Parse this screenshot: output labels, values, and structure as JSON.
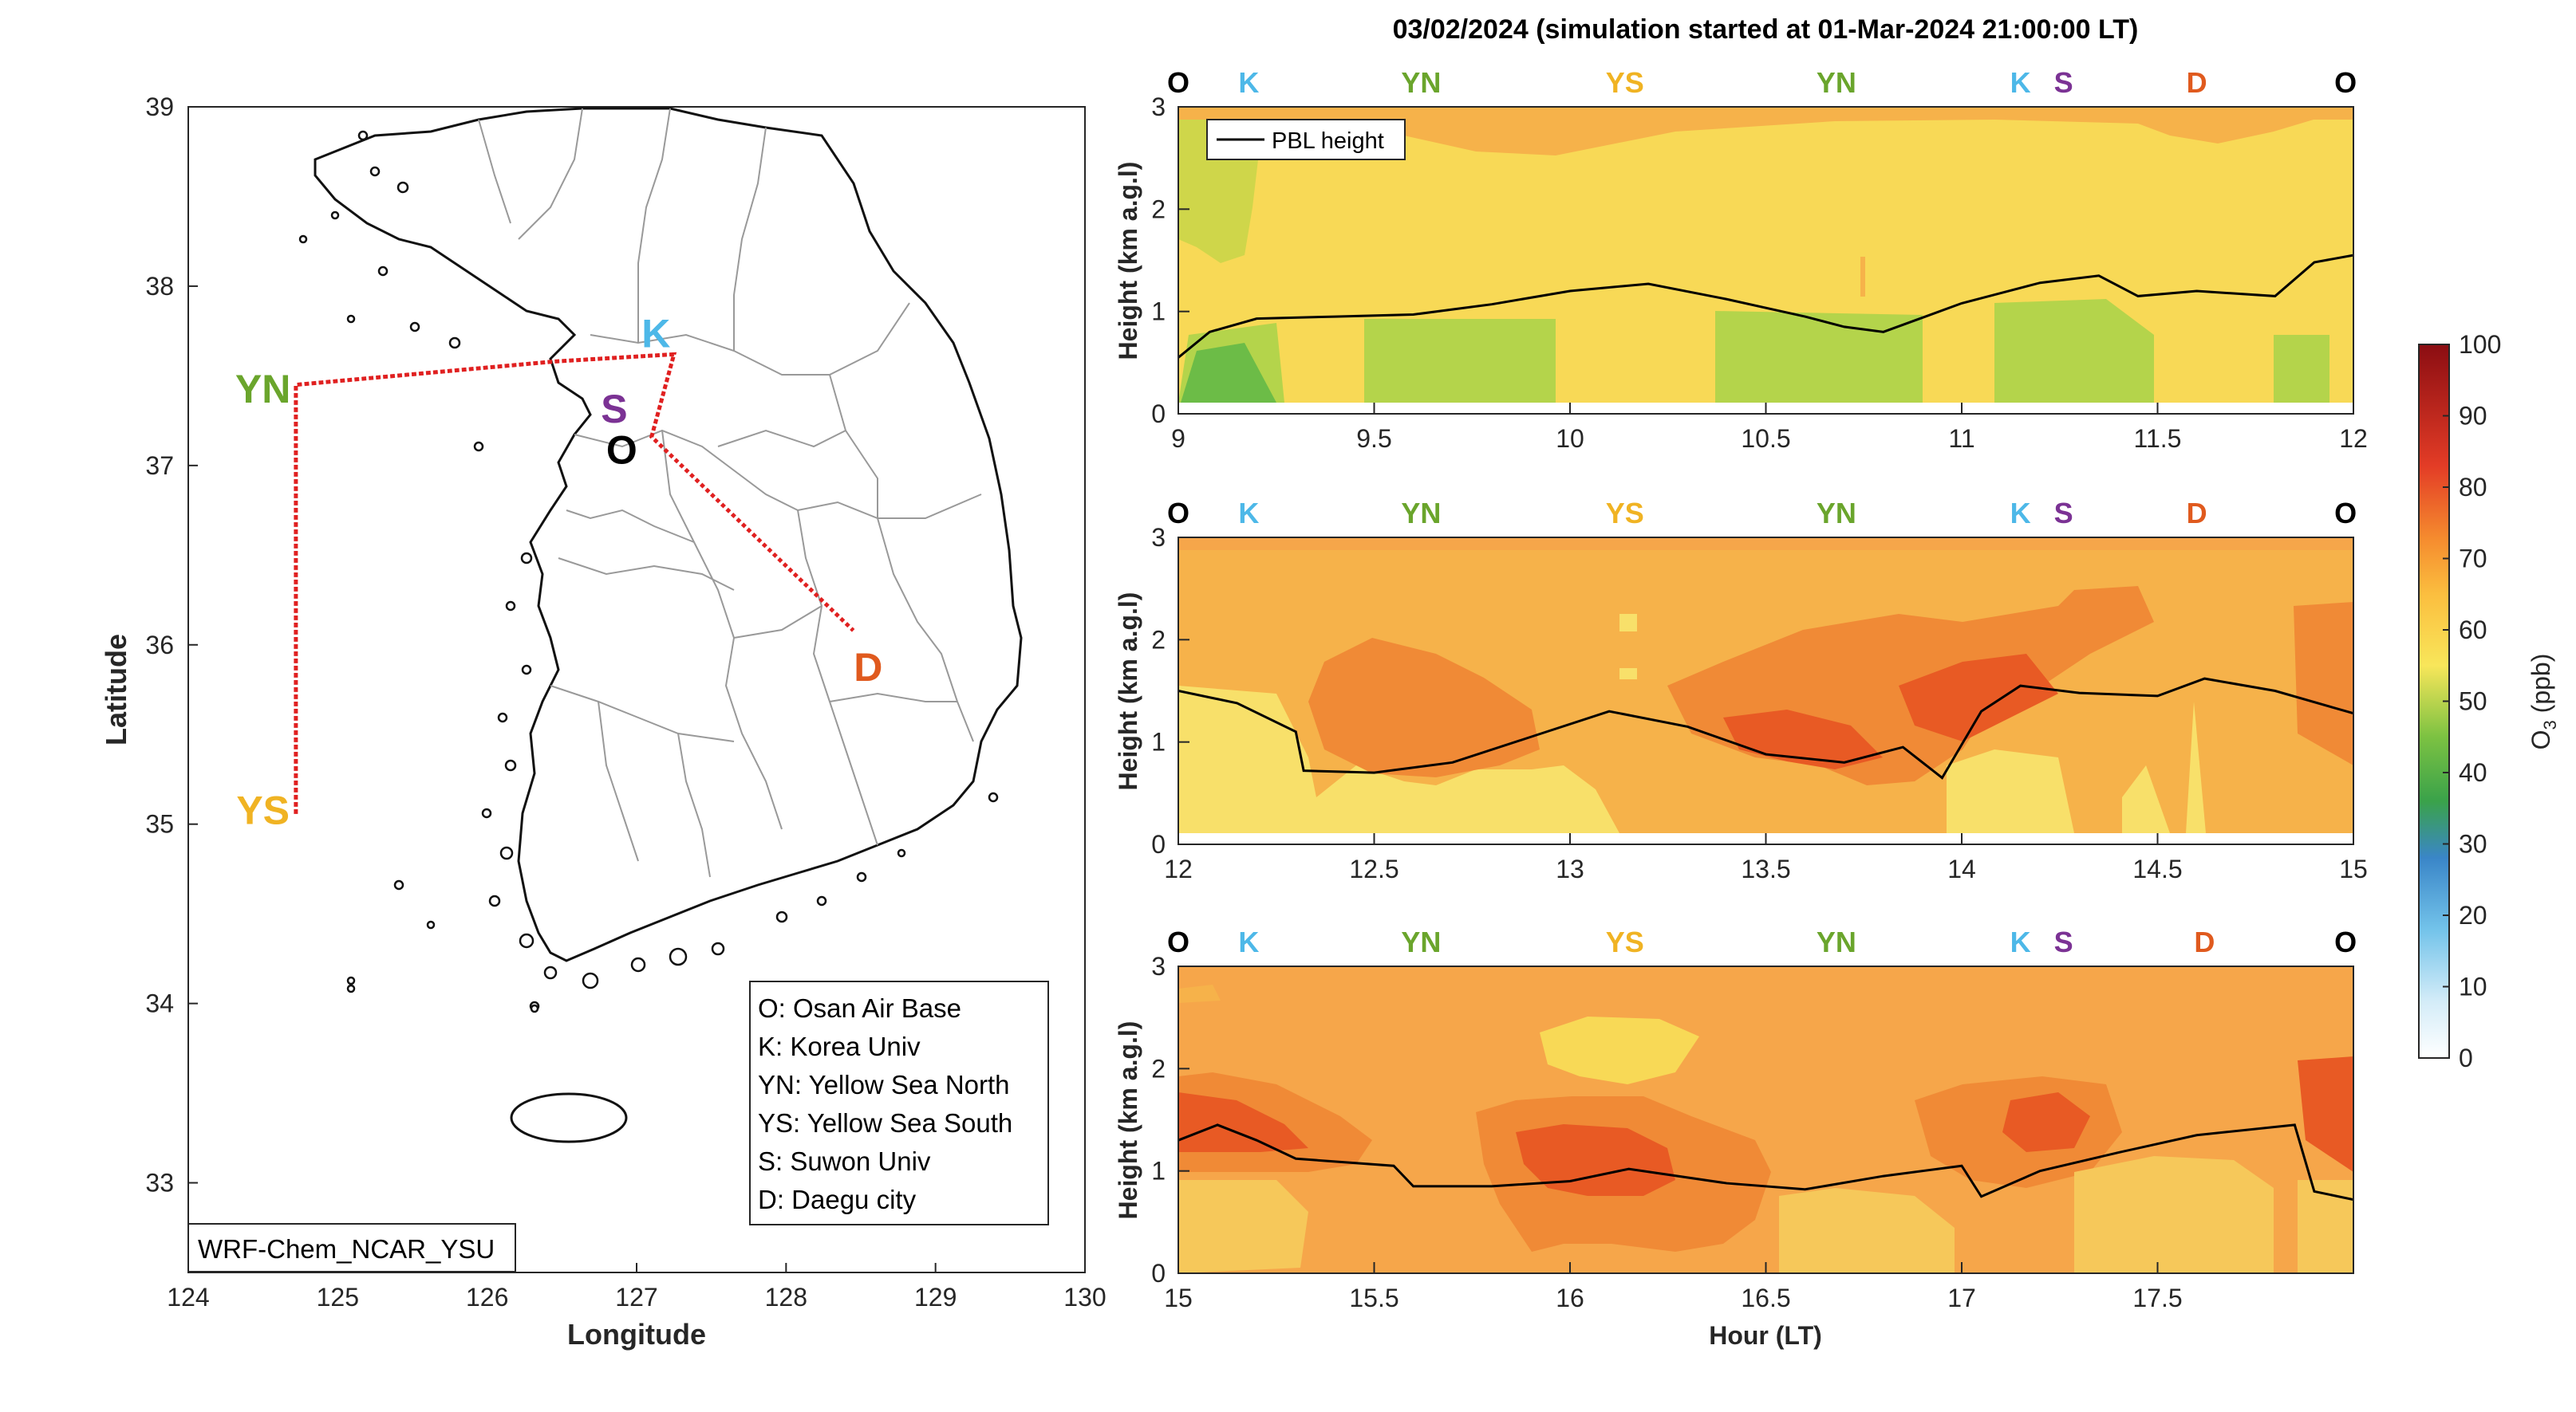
{
  "figure_title": "03/02/2024 (simulation started at 01-Mar-2024 21:00:00 LT)",
  "colors": {
    "site_O": "#000000",
    "site_K": "#4db8e8",
    "site_YN": "#6aa52c",
    "site_YS": "#f0b323",
    "site_S": "#7b3294",
    "site_D": "#e05a1e",
    "route": "#e02020",
    "pbl_line": "#000000"
  },
  "chart_data": [
    {
      "type": "map",
      "xlabel": "Longitude",
      "ylabel": "Latitude",
      "xlim": [
        124,
        130
      ],
      "ylim": [
        32.5,
        39
      ],
      "xticks": [
        "124",
        "125",
        "126",
        "127",
        "128",
        "129",
        "130"
      ],
      "yticks": [
        "33",
        "34",
        "35",
        "36",
        "37",
        "38",
        "39"
      ],
      "sites": [
        {
          "label": "O",
          "lon": 126.9,
          "lat": 37.09,
          "color": "#000000"
        },
        {
          "label": "K",
          "lon": 127.13,
          "lat": 37.74,
          "color": "#4db8e8"
        },
        {
          "label": "YN",
          "lon": 124.5,
          "lat": 37.43,
          "color": "#6aa52c"
        },
        {
          "label": "YS",
          "lon": 124.5,
          "lat": 35.08,
          "color": "#f0b323"
        },
        {
          "label": "S",
          "lon": 126.85,
          "lat": 37.32,
          "color": "#7b3294"
        },
        {
          "label": "D",
          "lon": 128.55,
          "lat": 35.88,
          "color": "#e05a1e"
        }
      ],
      "route": [
        [
          127.1,
          37.16
        ],
        [
          127.25,
          37.62
        ],
        [
          126.45,
          37.58
        ],
        [
          124.72,
          37.45
        ],
        [
          124.72,
          35.05
        ],
        [
          124.72,
          37.45
        ],
        [
          126.45,
          37.58
        ],
        [
          127.25,
          37.62
        ],
        [
          127.1,
          37.16
        ],
        [
          128.45,
          36.08
        ]
      ],
      "legend": [
        "O: Osan Air Base",
        "K: Korea Univ",
        "YN: Yellow Sea North",
        "YS: Yellow Sea South",
        "S: Suwon Univ",
        "D: Daegu city"
      ],
      "model_label": "WRF-Chem_NCAR_YSU"
    },
    {
      "type": "heatmap",
      "xlabel": "",
      "ylabel": "Height (km a.g.l)",
      "xlim": [
        9,
        12
      ],
      "ylim": [
        0,
        3
      ],
      "xticks": [
        "9",
        "9.5",
        "10",
        "10.5",
        "11",
        "11.5",
        "12"
      ],
      "yticks": [
        "0",
        "1",
        "2",
        "3"
      ],
      "site_markers": [
        {
          "label": "O",
          "x": 9.0
        },
        {
          "label": "K",
          "x": 9.18
        },
        {
          "label": "YN",
          "x": 9.62
        },
        {
          "label": "YS",
          "x": 10.14
        },
        {
          "label": "YN",
          "x": 10.68
        },
        {
          "label": "K",
          "x": 11.15
        },
        {
          "label": "S",
          "x": 11.26
        },
        {
          "label": "D",
          "x": 11.6
        },
        {
          "label": "O",
          "x": 11.98
        }
      ],
      "series": [
        {
          "name": "PBL height",
          "x": [
            9.0,
            9.08,
            9.2,
            9.4,
            9.6,
            9.8,
            10.0,
            10.2,
            10.4,
            10.6,
            10.7,
            10.8,
            11.0,
            11.1,
            11.2,
            11.35,
            11.45,
            11.6,
            11.8,
            11.9,
            12.0
          ],
          "y": [
            0.55,
            0.8,
            0.93,
            0.95,
            0.97,
            1.07,
            1.2,
            1.27,
            1.12,
            0.95,
            0.85,
            0.8,
            1.08,
            1.18,
            1.28,
            1.35,
            1.15,
            1.2,
            1.15,
            1.48,
            1.55
          ]
        }
      ]
    },
    {
      "type": "heatmap",
      "xlabel": "",
      "ylabel": "Height (km a.g.l)",
      "xlim": [
        12,
        15
      ],
      "ylim": [
        0,
        3
      ],
      "xticks": [
        "12",
        "12.5",
        "13",
        "13.5",
        "14",
        "14.5",
        "15"
      ],
      "yticks": [
        "0",
        "1",
        "2",
        "3"
      ],
      "site_markers": [
        {
          "label": "O",
          "x": 12.0
        },
        {
          "label": "K",
          "x": 12.18
        },
        {
          "label": "YN",
          "x": 12.62
        },
        {
          "label": "YS",
          "x": 13.14
        },
        {
          "label": "YN",
          "x": 13.68
        },
        {
          "label": "K",
          "x": 14.15
        },
        {
          "label": "S",
          "x": 14.26
        },
        {
          "label": "D",
          "x": 14.6
        },
        {
          "label": "O",
          "x": 14.98
        }
      ],
      "series": [
        {
          "name": "PBL height",
          "x": [
            12.0,
            12.15,
            12.3,
            12.32,
            12.5,
            12.7,
            12.9,
            13.1,
            13.3,
            13.5,
            13.7,
            13.85,
            13.95,
            14.05,
            14.15,
            14.3,
            14.5,
            14.62,
            14.8,
            15.0
          ],
          "y": [
            1.5,
            1.38,
            1.1,
            0.72,
            0.7,
            0.8,
            1.05,
            1.3,
            1.15,
            0.88,
            0.8,
            0.95,
            0.65,
            1.3,
            1.55,
            1.48,
            1.45,
            1.62,
            1.5,
            1.28
          ]
        }
      ]
    },
    {
      "type": "heatmap",
      "xlabel": "Hour (LT)",
      "ylabel": "Height (km a.g.l)",
      "xlim": [
        15,
        18
      ],
      "ylim": [
        0,
        3
      ],
      "xticks": [
        "15",
        "15.5",
        "16",
        "16.5",
        "17",
        "17.5"
      ],
      "yticks": [
        "0",
        "1",
        "2",
        "3"
      ],
      "site_markers": [
        {
          "label": "O",
          "x": 15.0
        },
        {
          "label": "K",
          "x": 15.18
        },
        {
          "label": "YN",
          "x": 15.62
        },
        {
          "label": "YS",
          "x": 16.14
        },
        {
          "label": "YN",
          "x": 16.68
        },
        {
          "label": "K",
          "x": 17.15
        },
        {
          "label": "S",
          "x": 17.26
        },
        {
          "label": "D",
          "x": 17.62
        },
        {
          "label": "O",
          "x": 17.98
        }
      ],
      "series": [
        {
          "name": "PBL height",
          "x": [
            15.0,
            15.1,
            15.2,
            15.3,
            15.55,
            15.6,
            15.8,
            16.0,
            16.15,
            16.4,
            16.6,
            16.8,
            17.0,
            17.05,
            17.2,
            17.4,
            17.6,
            17.85,
            17.9,
            18.0
          ],
          "y": [
            1.3,
            1.45,
            1.3,
            1.12,
            1.05,
            0.85,
            0.85,
            0.9,
            1.02,
            0.88,
            0.82,
            0.95,
            1.05,
            0.75,
            1.0,
            1.18,
            1.35,
            1.45,
            0.8,
            0.72
          ]
        }
      ]
    }
  ],
  "legend_label": "PBL height",
  "colorbar": {
    "label": "O_3 (ppb)",
    "label_main": "O",
    "label_sub": "3",
    "label_unit": " (ppb)",
    "min": 0,
    "max": 100,
    "ticks": [
      "0",
      "10",
      "20",
      "30",
      "40",
      "50",
      "60",
      "70",
      "80",
      "90",
      "100"
    ]
  }
}
